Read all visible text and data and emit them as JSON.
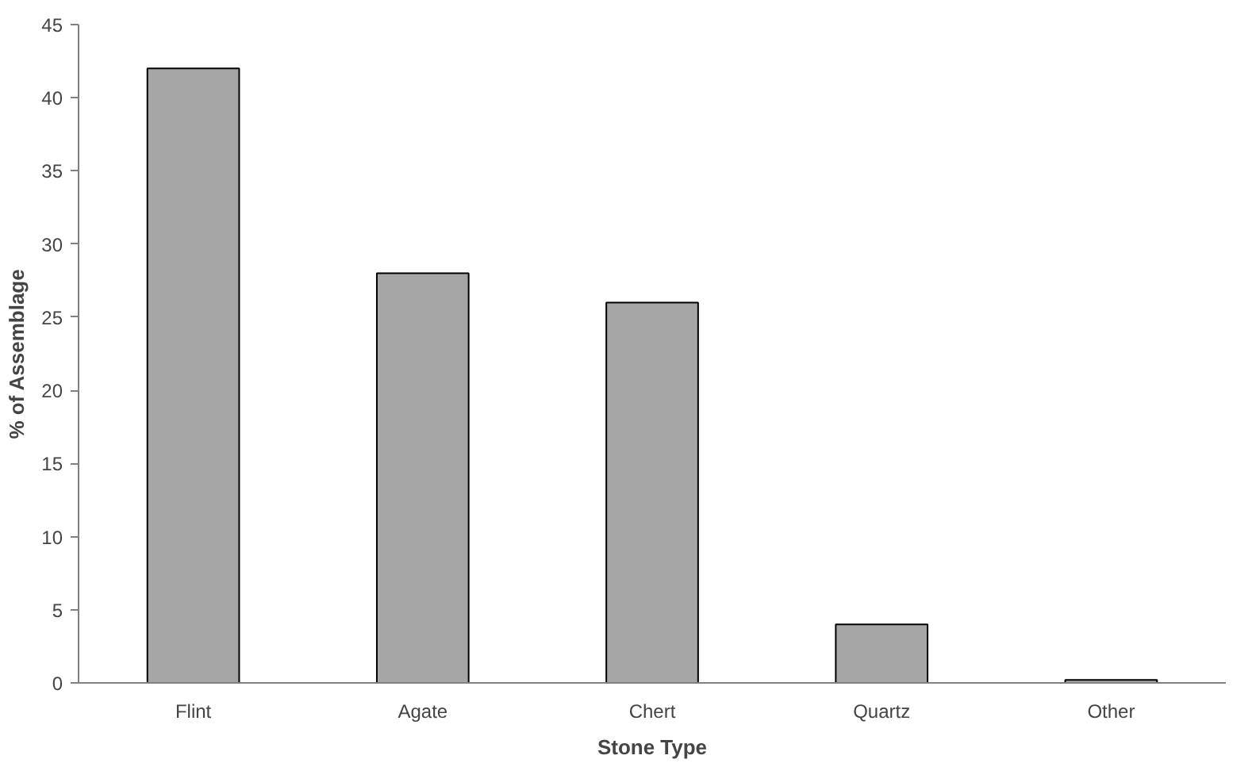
{
  "chart_data": {
    "type": "bar",
    "xlabel": "Stone Type",
    "ylabel": "% of Assemblage",
    "categories": [
      "Flint",
      "Agate",
      "Chert",
      "Quartz",
      "Other"
    ],
    "values": [
      42,
      28,
      26,
      4,
      0.2
    ],
    "color": "#a6a6a6",
    "ylim": [
      0,
      45
    ],
    "yticks": [
      0,
      5,
      10,
      15,
      20,
      25,
      30,
      35,
      40,
      45
    ],
    "grid": false
  }
}
